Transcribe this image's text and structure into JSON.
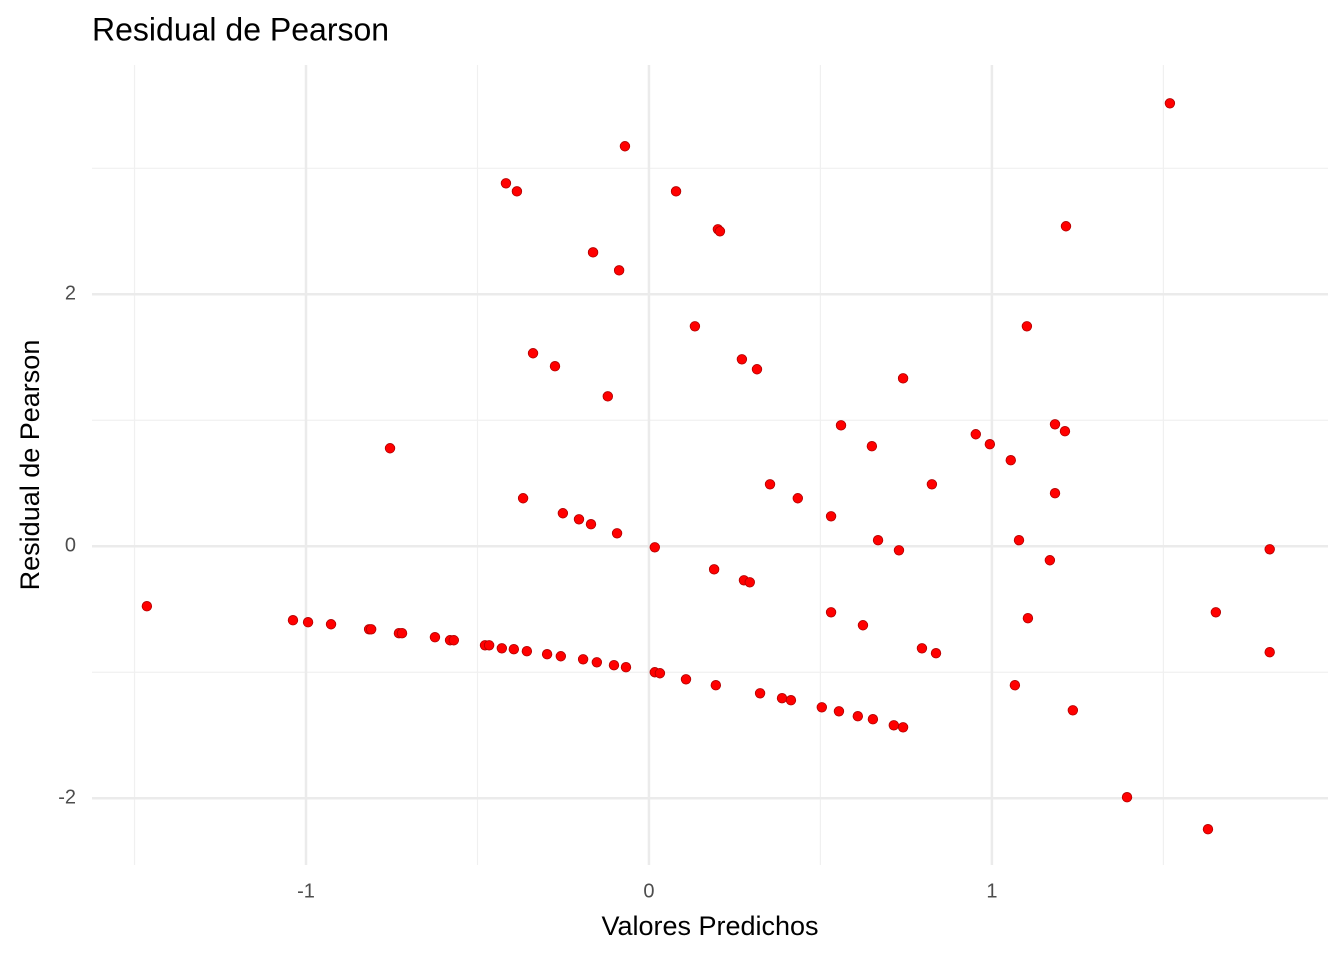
{
  "chart_data": {
    "type": "scatter",
    "title": "Residual de Pearson",
    "x_label": "Valores Predichos",
    "y_label": "Residual de Pearson",
    "x": [
      -1.464,
      -1.038,
      -0.994,
      -0.927,
      -0.816,
      -0.81,
      -0.729,
      -0.72,
      -0.624,
      -0.58,
      -0.569,
      -0.478,
      -0.466,
      -0.429,
      -0.394,
      -0.356,
      -0.297,
      -0.257,
      -0.192,
      -0.152,
      -0.102,
      -0.067,
      0.017,
      0.032,
      0.108,
      0.195,
      0.324,
      0.388,
      0.414,
      0.504,
      0.554,
      0.609,
      0.653,
      0.714,
      0.741,
      -0.417,
      -0.385,
      -0.07,
      0.079,
      0.201,
      0.207,
      -0.163,
      -0.087,
      0.134,
      -0.338,
      -0.274,
      0.271,
      0.315,
      -0.12,
      -0.755,
      0.741,
      0.56,
      0.65,
      -0.367,
      -0.251,
      -0.204,
      -0.169,
      -0.093,
      0.017,
      0.353,
      0.434,
      0.531,
      0.668,
      0.729,
      0.19,
      0.277,
      0.294,
      0.531,
      0.624,
      0.796,
      0.837,
      0.825,
      0.953,
      0.994,
      1.055,
      1.102,
      1.216,
      1.519,
      1.184,
      1.213,
      1.184,
      1.079,
      1.169,
      1.105,
      1.067,
      1.236,
      1.394,
      1.63,
      1.653,
      1.81,
      1.81
    ],
    "values": [
      -0.476,
      -0.587,
      -0.603,
      -0.619,
      -0.659,
      -0.659,
      -0.69,
      -0.69,
      -0.722,
      -0.746,
      -0.746,
      -0.786,
      -0.786,
      -0.81,
      -0.817,
      -0.833,
      -0.857,
      -0.873,
      -0.897,
      -0.921,
      -0.944,
      -0.96,
      -1.0,
      -1.008,
      -1.056,
      -1.103,
      -1.167,
      -1.206,
      -1.222,
      -1.278,
      -1.31,
      -1.349,
      -1.373,
      -1.421,
      -1.437,
      2.881,
      2.817,
      3.175,
      2.817,
      2.516,
      2.5,
      2.333,
      2.19,
      1.746,
      1.532,
      1.429,
      1.484,
      1.405,
      1.19,
      0.778,
      1.333,
      0.96,
      0.794,
      0.381,
      0.262,
      0.214,
      0.175,
      0.103,
      -0.008,
      0.492,
      0.381,
      0.238,
      0.048,
      -0.032,
      -0.183,
      -0.27,
      -0.286,
      -0.524,
      -0.627,
      -0.81,
      -0.849,
      0.492,
      0.889,
      0.81,
      0.683,
      1.746,
      2.54,
      3.516,
      0.968,
      0.913,
      0.421,
      0.048,
      -0.111,
      -0.571,
      -1.103,
      -1.302,
      -1.992,
      -2.246,
      -0.524,
      -0.024,
      -0.841
    ],
    "color": "#ff0000",
    "xlim": [
      -1.624,
      1.98
    ],
    "ylim": [
      -2.53,
      3.82
    ],
    "xticks": [
      -1,
      0,
      1
    ],
    "yticks": [
      -2,
      0,
      2
    ],
    "minor_xticks": [
      -1.5,
      -0.5,
      0.5,
      1.5
    ],
    "minor_yticks": [
      -1,
      1,
      3
    ],
    "grid": true
  }
}
